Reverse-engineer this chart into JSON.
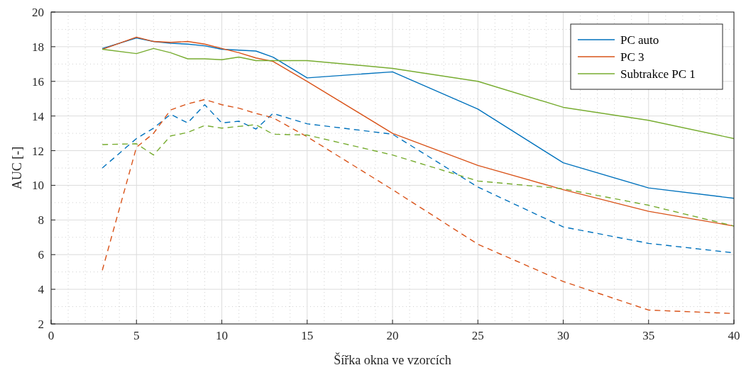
{
  "chart_data": {
    "type": "line",
    "xlabel": "Šířka okna ve vzorcích",
    "ylabel": "AUC [-]",
    "x": [
      3,
      5,
      6,
      7,
      8,
      9,
      10,
      11,
      12,
      13,
      15,
      20,
      25,
      30,
      35,
      40
    ],
    "xlim": [
      0,
      40
    ],
    "xticks": [
      0,
      5,
      10,
      15,
      20,
      25,
      30,
      35,
      40
    ],
    "ylim": [
      2,
      20
    ],
    "yticks": [
      2,
      4,
      6,
      8,
      10,
      12,
      14,
      16,
      18,
      20
    ],
    "grid": true,
    "legend": "top right",
    "marker": "none",
    "series": [
      {
        "name": "PC auto",
        "color": "#0072bd",
        "line_style": "solid",
        "values": [
          17.9,
          18.5,
          18.3,
          18.2,
          18.15,
          18.05,
          17.85,
          17.8,
          17.75,
          17.4,
          16.2,
          16.55,
          14.4,
          11.3,
          9.85,
          9.25
        ]
      },
      {
        "name": "PC 3",
        "color": "#d95319",
        "line_style": "solid",
        "values": [
          17.85,
          18.55,
          18.3,
          18.25,
          18.3,
          18.15,
          17.9,
          17.65,
          17.35,
          17.15,
          16.0,
          13.0,
          11.15,
          9.75,
          8.5,
          7.65
        ]
      },
      {
        "name": "Subtrakce PC 1",
        "color": "#77ac30",
        "line_style": "solid",
        "values": [
          17.85,
          17.6,
          17.9,
          17.65,
          17.3,
          17.3,
          17.25,
          17.4,
          17.2,
          17.2,
          17.2,
          16.75,
          16.0,
          14.5,
          13.75,
          12.7
        ]
      },
      {
        "color": "#0072bd",
        "line_style": "dashed",
        "values": [
          11.0,
          12.7,
          13.3,
          14.1,
          13.6,
          14.65,
          13.6,
          13.7,
          13.25,
          14.15,
          13.55,
          12.95,
          9.9,
          7.6,
          6.65,
          6.1
        ]
      },
      {
        "color": "#d95319",
        "line_style": "dashed",
        "values": [
          5.1,
          12.2,
          13.0,
          14.35,
          14.7,
          14.95,
          14.65,
          14.45,
          14.15,
          13.9,
          12.8,
          9.75,
          6.6,
          4.45,
          2.8,
          2.6
        ]
      },
      {
        "color": "#77ac30",
        "line_style": "dashed",
        "values": [
          12.35,
          12.4,
          11.75,
          12.85,
          13.05,
          13.45,
          13.3,
          13.4,
          13.5,
          12.95,
          12.9,
          11.75,
          10.25,
          9.8,
          8.85,
          7.65
        ]
      }
    ]
  }
}
